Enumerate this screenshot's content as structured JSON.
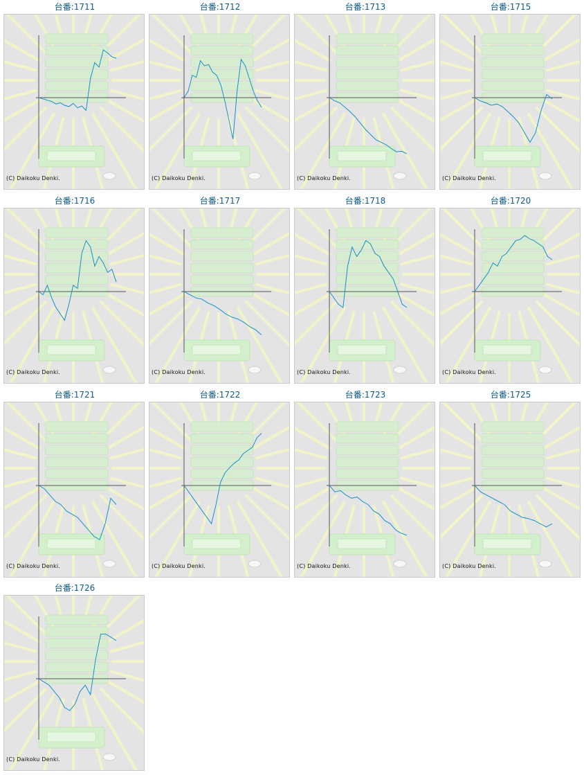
{
  "copyright": "(C) Daikoku Denki.",
  "title_prefix": "台番:",
  "colors": {
    "line": "#1591c7",
    "axis": "#555555",
    "title": "#0e5a8a"
  },
  "chart_data": [
    {
      "type": "line",
      "title": "台番:1711",
      "y": [
        0,
        -2,
        -4,
        -6,
        -10,
        -8,
        -12,
        -14,
        -9,
        -16,
        -13,
        -20,
        30,
        55,
        48,
        75,
        70,
        64,
        62
      ]
    },
    {
      "type": "line",
      "title": "台番:1712",
      "y": [
        0,
        10,
        35,
        32,
        58,
        50,
        52,
        40,
        35,
        20,
        -5,
        -35,
        -65,
        10,
        60,
        50,
        30,
        10,
        -5,
        -15
      ]
    },
    {
      "type": "line",
      "title": "台番:1713",
      "y": [
        0,
        -5,
        -8,
        -15,
        -22,
        -30,
        -40,
        -50,
        -58,
        -66,
        -70,
        -74,
        -80,
        -85,
        -84,
        -88
      ]
    },
    {
      "type": "line",
      "title": "台番:1715",
      "y": [
        0,
        -5,
        -8,
        -12,
        -10,
        -14,
        -22,
        -30,
        -40,
        -55,
        -70,
        -55,
        -20,
        5,
        -2
      ]
    },
    {
      "type": "line",
      "title": "台番:1716",
      "y": [
        0,
        -5,
        10,
        -10,
        -25,
        -35,
        -45,
        -20,
        10,
        5,
        60,
        80,
        70,
        40,
        55,
        45,
        30,
        35,
        15
      ]
    },
    {
      "type": "line",
      "title": "台番:1717",
      "y": [
        0,
        -5,
        -10,
        -12,
        -18,
        -22,
        -28,
        -35,
        -40,
        -43,
        -48,
        -55,
        -60,
        -68
      ]
    },
    {
      "type": "line",
      "title": "台番:1718",
      "y": [
        0,
        -10,
        -20,
        -25,
        40,
        70,
        55,
        65,
        80,
        75,
        60,
        55,
        40,
        30,
        20,
        0,
        -20,
        -25
      ]
    },
    {
      "type": "line",
      "title": "台番:1720",
      "y": [
        0,
        10,
        20,
        30,
        45,
        40,
        55,
        60,
        70,
        80,
        82,
        88,
        83,
        80,
        75,
        70,
        55,
        50
      ]
    },
    {
      "type": "line",
      "title": "台番:1721",
      "y": [
        0,
        -5,
        -15,
        -25,
        -30,
        -40,
        -45,
        -50,
        -60,
        -70,
        -80,
        -85,
        -60,
        -20,
        -30
      ]
    },
    {
      "type": "line",
      "title": "台番:1722",
      "y": [
        0,
        -10,
        -20,
        -30,
        -40,
        -50,
        -60,
        -30,
        5,
        20,
        28,
        35,
        40,
        50,
        55,
        60,
        75,
        82
      ]
    },
    {
      "type": "line",
      "title": "台番:1723",
      "y": [
        0,
        -10,
        -8,
        -15,
        -20,
        -18,
        -25,
        -30,
        -40,
        -45,
        -55,
        -60,
        -70,
        -75,
        -78
      ]
    },
    {
      "type": "line",
      "title": "台番:1725",
      "y": [
        0,
        -10,
        -15,
        -20,
        -25,
        -30,
        -40,
        -45,
        -50,
        -52,
        -55,
        -60,
        -65,
        -60
      ]
    },
    {
      "type": "line",
      "title": "台番:1726",
      "y": [
        0,
        -5,
        -10,
        -20,
        -30,
        -45,
        -50,
        -40,
        -20,
        -10,
        -25,
        30,
        70,
        70,
        65,
        60
      ]
    }
  ]
}
